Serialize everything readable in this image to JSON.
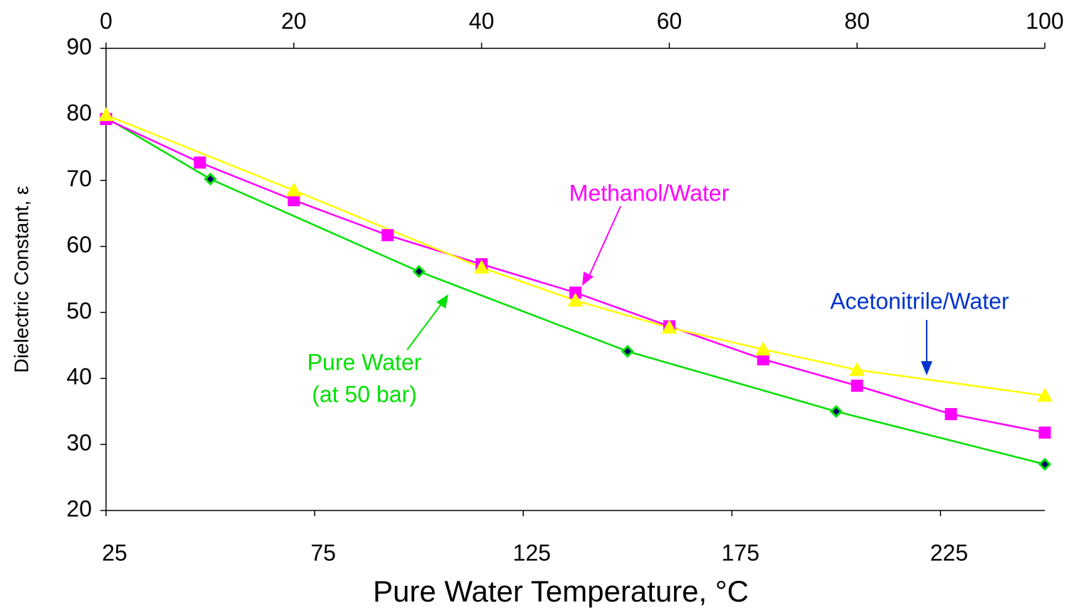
{
  "chart_data": {
    "type": "line",
    "xlabel": "Pure Water Temperature, °C",
    "ylabel": "Dielectric Constant, ε",
    "xlim": [
      25,
      250
    ],
    "xticks": [
      25,
      75,
      125,
      175,
      225
    ],
    "x2lim": [
      0,
      100
    ],
    "x2ticks": [
      0,
      20,
      40,
      60,
      80,
      100
    ],
    "ylim": [
      20,
      90
    ],
    "yticks": [
      20,
      30,
      40,
      50,
      60,
      70,
      80,
      90
    ],
    "series": [
      {
        "name": "Pure Water",
        "note": "(at 50 bar)",
        "color": "#00e000",
        "marker": "diamond",
        "marker_fill": "#000066",
        "label_color": "#00e000",
        "axis": "x",
        "x": [
          25,
          50,
          100,
          150,
          200,
          250
        ],
        "values": [
          79.5,
          70.2,
          56.2,
          44.1,
          35.0,
          27.0
        ]
      },
      {
        "name": "Methanol/Water",
        "color": "#ff00ff",
        "marker": "square",
        "label_color": "#ff00ff",
        "axis": "x2",
        "x": [
          0,
          10,
          20,
          30,
          40,
          50,
          60,
          70,
          80,
          90,
          100
        ],
        "values": [
          79.3,
          72.7,
          67.0,
          61.7,
          57.3,
          53.0,
          47.9,
          42.9,
          38.9,
          34.6,
          31.8
        ]
      },
      {
        "name": "Acetonitrile/Water",
        "color": "#ffff00",
        "marker": "triangle",
        "label_color": "#0033cc",
        "axis": "x2",
        "x": [
          0,
          20,
          40,
          50,
          60,
          70,
          80,
          100
        ],
        "values": [
          79.9,
          68.5,
          56.8,
          51.8,
          47.7,
          44.4,
          41.3,
          37.4
        ]
      }
    ]
  }
}
